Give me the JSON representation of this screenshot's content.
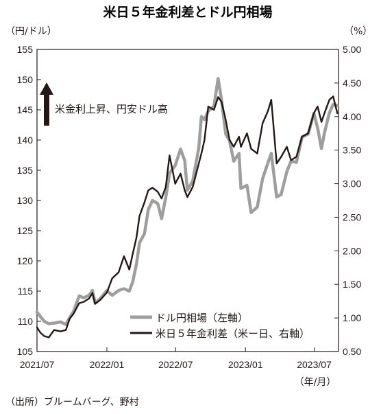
{
  "chart_data": {
    "type": "line",
    "title": "米日５年金利差とドル円相場",
    "left_axis": {
      "unit_label": "（円/ドル）",
      "range": [
        105,
        155
      ],
      "ticks": [
        "155",
        "150",
        "145",
        "140",
        "135",
        "130",
        "125",
        "120",
        "115",
        "110",
        "105"
      ]
    },
    "right_axis": {
      "unit_label": "（%）",
      "range": [
        0.5,
        5.0
      ],
      "ticks": [
        "5.00",
        "4.50",
        "4.00",
        "3.50",
        "3.00",
        "2.50",
        "2.00",
        "1.50",
        "1.00",
        "0.50"
      ]
    },
    "x_axis": {
      "range": [
        "2021-07",
        "2023-08"
      ],
      "ticks": [
        "2021/07",
        "2022/01",
        "2022/07",
        "2023/01",
        "2023/07"
      ],
      "unit_label": "（年/月）"
    },
    "annotation": "米金利上昇、円安ドル高",
    "grid": false,
    "legend_placement": "bottom-right",
    "series": [
      {
        "name": "ドル円相場（左軸）",
        "axis": "left",
        "color": "#9e9e9f",
        "points": [
          [
            "2021-07-01",
            111.5
          ],
          [
            "2021-07-10",
            110.8
          ],
          [
            "2021-07-20",
            110.0
          ],
          [
            "2021-08-01",
            109.6
          ],
          [
            "2021-08-15",
            109.7
          ],
          [
            "2021-09-01",
            109.9
          ],
          [
            "2021-09-15",
            109.5
          ],
          [
            "2021-09-25",
            110.6
          ],
          [
            "2021-10-05",
            111.6
          ],
          [
            "2021-10-20",
            114.2
          ],
          [
            "2021-11-01",
            113.9
          ],
          [
            "2021-11-15",
            114.3
          ],
          [
            "2021-11-24",
            115.1
          ],
          [
            "2021-12-01",
            113.0
          ],
          [
            "2021-12-15",
            113.8
          ],
          [
            "2022-01-01",
            115.1
          ],
          [
            "2022-01-15",
            114.3
          ],
          [
            "2022-02-01",
            115.1
          ],
          [
            "2022-02-15",
            115.4
          ],
          [
            "2022-03-01",
            115.0
          ],
          [
            "2022-03-10",
            116.5
          ],
          [
            "2022-03-20",
            119.5
          ],
          [
            "2022-03-28",
            123.0
          ],
          [
            "2022-04-10",
            124.5
          ],
          [
            "2022-04-20",
            128.5
          ],
          [
            "2022-05-01",
            130.0
          ],
          [
            "2022-05-15",
            129.5
          ],
          [
            "2022-05-25",
            127.0
          ],
          [
            "2022-06-05",
            130.5
          ],
          [
            "2022-06-15",
            134.5
          ],
          [
            "2022-06-30",
            135.8
          ],
          [
            "2022-07-14",
            138.5
          ],
          [
            "2022-07-25",
            136.6
          ],
          [
            "2022-08-01",
            131.7
          ],
          [
            "2022-08-15",
            133.2
          ],
          [
            "2022-08-31",
            138.7
          ],
          [
            "2022-09-07",
            143.9
          ],
          [
            "2022-09-15",
            143.4
          ],
          [
            "2022-09-25",
            144.8
          ],
          [
            "2022-10-10",
            145.6
          ],
          [
            "2022-10-21",
            150.2
          ],
          [
            "2022-10-30",
            146.6
          ],
          [
            "2022-11-10",
            141.0
          ],
          [
            "2022-11-20",
            139.9
          ],
          [
            "2022-12-01",
            136.5
          ],
          [
            "2022-12-15",
            137.8
          ],
          [
            "2022-12-20",
            132.0
          ],
          [
            "2023-01-05",
            132.5
          ],
          [
            "2023-01-16",
            128.0
          ],
          [
            "2023-02-01",
            128.9
          ],
          [
            "2023-02-15",
            133.6
          ],
          [
            "2023-03-01",
            136.2
          ],
          [
            "2023-03-10",
            137.8
          ],
          [
            "2023-03-24",
            130.6
          ],
          [
            "2023-04-05",
            131.0
          ],
          [
            "2023-04-20",
            134.8
          ],
          [
            "2023-05-01",
            136.5
          ],
          [
            "2023-05-15",
            136.3
          ],
          [
            "2023-05-30",
            140.5
          ],
          [
            "2023-06-15",
            141.0
          ],
          [
            "2023-06-30",
            144.4
          ],
          [
            "2023-07-10",
            142.0
          ],
          [
            "2023-07-20",
            138.6
          ],
          [
            "2023-07-28",
            141.2
          ],
          [
            "2023-08-10",
            144.5
          ],
          [
            "2023-08-20",
            145.9
          ],
          [
            "2023-08-31",
            145.7
          ]
        ]
      },
      {
        "name": "米日５年金利差（米ー日、右軸）",
        "axis": "right",
        "color": "#231815",
        "points": [
          [
            "2021-07-01",
            0.86
          ],
          [
            "2021-07-10",
            0.78
          ],
          [
            "2021-07-20",
            0.73
          ],
          [
            "2021-08-01",
            0.71
          ],
          [
            "2021-08-15",
            0.82
          ],
          [
            "2021-09-01",
            0.8
          ],
          [
            "2021-09-15",
            0.82
          ],
          [
            "2021-09-25",
            0.99
          ],
          [
            "2021-10-05",
            1.06
          ],
          [
            "2021-10-20",
            1.22
          ],
          [
            "2021-11-01",
            1.24
          ],
          [
            "2021-11-15",
            1.29
          ],
          [
            "2021-11-24",
            1.37
          ],
          [
            "2021-12-01",
            1.21
          ],
          [
            "2021-12-15",
            1.27
          ],
          [
            "2022-01-01",
            1.38
          ],
          [
            "2022-01-15",
            1.59
          ],
          [
            "2022-02-01",
            1.68
          ],
          [
            "2022-02-15",
            1.92
          ],
          [
            "2022-03-01",
            1.72
          ],
          [
            "2022-03-10",
            1.95
          ],
          [
            "2022-03-20",
            2.2
          ],
          [
            "2022-03-28",
            2.52
          ],
          [
            "2022-04-10",
            2.72
          ],
          [
            "2022-04-20",
            2.9
          ],
          [
            "2022-05-01",
            2.94
          ],
          [
            "2022-05-15",
            2.88
          ],
          [
            "2022-05-25",
            2.78
          ],
          [
            "2022-06-05",
            2.95
          ],
          [
            "2022-06-15",
            3.42
          ],
          [
            "2022-06-30",
            3.0
          ],
          [
            "2022-07-14",
            3.15
          ],
          [
            "2022-07-25",
            2.9
          ],
          [
            "2022-08-01",
            2.8
          ],
          [
            "2022-08-15",
            2.95
          ],
          [
            "2022-08-31",
            3.3
          ],
          [
            "2022-09-07",
            3.45
          ],
          [
            "2022-09-15",
            3.65
          ],
          [
            "2022-09-25",
            4.15
          ],
          [
            "2022-10-10",
            4.1
          ],
          [
            "2022-10-21",
            4.29
          ],
          [
            "2022-10-30",
            4.22
          ],
          [
            "2022-11-10",
            3.95
          ],
          [
            "2022-11-20",
            3.65
          ],
          [
            "2022-12-01",
            3.55
          ],
          [
            "2022-12-15",
            3.7
          ],
          [
            "2022-12-20",
            3.55
          ],
          [
            "2023-01-05",
            3.75
          ],
          [
            "2023-01-16",
            3.52
          ],
          [
            "2023-02-01",
            3.45
          ],
          [
            "2023-02-15",
            3.9
          ],
          [
            "2023-03-01",
            4.08
          ],
          [
            "2023-03-10",
            4.25
          ],
          [
            "2023-03-24",
            3.3
          ],
          [
            "2023-04-05",
            3.4
          ],
          [
            "2023-04-20",
            3.55
          ],
          [
            "2023-05-01",
            3.35
          ],
          [
            "2023-05-15",
            3.4
          ],
          [
            "2023-05-30",
            3.7
          ],
          [
            "2023-06-15",
            3.75
          ],
          [
            "2023-06-30",
            4.05
          ],
          [
            "2023-07-10",
            4.15
          ],
          [
            "2023-07-20",
            3.92
          ],
          [
            "2023-07-28",
            4.05
          ],
          [
            "2023-08-10",
            4.25
          ],
          [
            "2023-08-20",
            4.3
          ],
          [
            "2023-08-31",
            4.05
          ]
        ]
      }
    ]
  },
  "source": "（出所）ブルームバーグ、野村"
}
